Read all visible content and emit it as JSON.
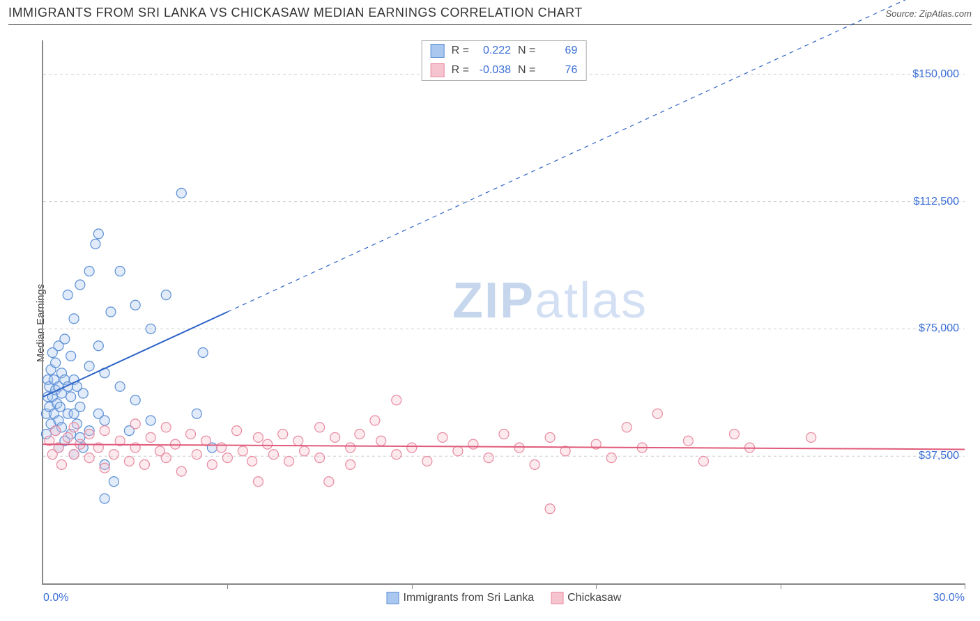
{
  "title": "IMMIGRANTS FROM SRI LANKA VS CHICKASAW MEDIAN EARNINGS CORRELATION CHART",
  "source_label": "Source: ",
  "source_name": "ZipAtlas.com",
  "ylabel": "Median Earnings",
  "watermark": {
    "part1": "ZIP",
    "part2": "atlas"
  },
  "chart": {
    "type": "scatter",
    "xlim": [
      0,
      30
    ],
    "ylim": [
      0,
      160000
    ],
    "x_unit": "%",
    "xticks_labels": {
      "left": "0.0%",
      "right": "30.0%"
    },
    "xtick_positions_pct": [
      0,
      20,
      40,
      60,
      80,
      100
    ],
    "yticks": [
      {
        "value": 37500,
        "label": "$37,500"
      },
      {
        "value": 75000,
        "label": "$75,000"
      },
      {
        "value": 112500,
        "label": "$112,500"
      },
      {
        "value": 150000,
        "label": "$150,000"
      }
    ],
    "grid_color": "#cccccc",
    "axis_color": "#888888",
    "background_color": "#ffffff",
    "marker_radius": 7,
    "marker_stroke_width": 1.2,
    "marker_fill_opacity": 0.35,
    "series": [
      {
        "id": "sri_lanka",
        "label": "Immigrants from Sri Lanka",
        "color_fill": "#a9c7ef",
        "color_stroke": "#5b8fd6",
        "stats": {
          "R": "0.222",
          "N": "69"
        },
        "trend": {
          "color": "#2d63c8",
          "width": 2,
          "solid_x_range": [
            0,
            6
          ],
          "y_at_solid": [
            55000,
            80000
          ],
          "dashed_to": [
            30,
            180000
          ]
        },
        "points": [
          [
            0.1,
            44000
          ],
          [
            0.1,
            50000
          ],
          [
            0.15,
            55000
          ],
          [
            0.15,
            60000
          ],
          [
            0.2,
            52000
          ],
          [
            0.2,
            58000
          ],
          [
            0.25,
            47000
          ],
          [
            0.25,
            63000
          ],
          [
            0.3,
            55000
          ],
          [
            0.3,
            68000
          ],
          [
            0.35,
            50000
          ],
          [
            0.35,
            60000
          ],
          [
            0.4,
            45000
          ],
          [
            0.4,
            57000
          ],
          [
            0.4,
            65000
          ],
          [
            0.45,
            53000
          ],
          [
            0.5,
            40000
          ],
          [
            0.5,
            48000
          ],
          [
            0.5,
            58000
          ],
          [
            0.5,
            70000
          ],
          [
            0.55,
            52000
          ],
          [
            0.6,
            46000
          ],
          [
            0.6,
            56000
          ],
          [
            0.6,
            62000
          ],
          [
            0.7,
            42000
          ],
          [
            0.7,
            60000
          ],
          [
            0.7,
            72000
          ],
          [
            0.8,
            50000
          ],
          [
            0.8,
            58000
          ],
          [
            0.8,
            85000
          ],
          [
            0.9,
            44000
          ],
          [
            0.9,
            55000
          ],
          [
            0.9,
            67000
          ],
          [
            1.0,
            38000
          ],
          [
            1.0,
            50000
          ],
          [
            1.0,
            60000
          ],
          [
            1.0,
            78000
          ],
          [
            1.1,
            47000
          ],
          [
            1.1,
            58000
          ],
          [
            1.2,
            43000
          ],
          [
            1.2,
            52000
          ],
          [
            1.2,
            88000
          ],
          [
            1.3,
            40000
          ],
          [
            1.3,
            56000
          ],
          [
            1.5,
            45000
          ],
          [
            1.5,
            64000
          ],
          [
            1.5,
            92000
          ],
          [
            1.7,
            100000
          ],
          [
            1.8,
            50000
          ],
          [
            1.8,
            70000
          ],
          [
            1.8,
            103000
          ],
          [
            2.0,
            35000
          ],
          [
            2.0,
            48000
          ],
          [
            2.0,
            62000
          ],
          [
            2.2,
            80000
          ],
          [
            2.3,
            30000
          ],
          [
            2.5,
            58000
          ],
          [
            2.5,
            92000
          ],
          [
            2.8,
            45000
          ],
          [
            3.0,
            54000
          ],
          [
            3.0,
            82000
          ],
          [
            3.5,
            48000
          ],
          [
            3.5,
            75000
          ],
          [
            4.0,
            85000
          ],
          [
            4.5,
            115000
          ],
          [
            5.0,
            50000
          ],
          [
            5.2,
            68000
          ],
          [
            5.5,
            40000
          ],
          [
            2.0,
            25000
          ]
        ]
      },
      {
        "id": "chickasaw",
        "label": "Chickasaw",
        "color_fill": "#f6c4ce",
        "color_stroke": "#e88aa0",
        "stats": {
          "R": "-0.038",
          "N": "76"
        },
        "trend": {
          "color": "#e05a7a",
          "width": 2,
          "solid_x_range": [
            0,
            30
          ],
          "y_at_solid": [
            41000,
            39500
          ],
          "dashed_to": null
        },
        "points": [
          [
            0.2,
            42000
          ],
          [
            0.3,
            38000
          ],
          [
            0.4,
            45000
          ],
          [
            0.5,
            40000
          ],
          [
            0.6,
            35000
          ],
          [
            0.8,
            43000
          ],
          [
            1.0,
            38000
          ],
          [
            1.0,
            46000
          ],
          [
            1.2,
            41000
          ],
          [
            1.5,
            37000
          ],
          [
            1.5,
            44000
          ],
          [
            1.8,
            40000
          ],
          [
            2.0,
            34000
          ],
          [
            2.0,
            45000
          ],
          [
            2.3,
            38000
          ],
          [
            2.5,
            42000
          ],
          [
            2.8,
            36000
          ],
          [
            3.0,
            40000
          ],
          [
            3.0,
            47000
          ],
          [
            3.3,
            35000
          ],
          [
            3.5,
            43000
          ],
          [
            3.8,
            39000
          ],
          [
            4.0,
            37000
          ],
          [
            4.0,
            46000
          ],
          [
            4.3,
            41000
          ],
          [
            4.5,
            33000
          ],
          [
            4.8,
            44000
          ],
          [
            5.0,
            38000
          ],
          [
            5.3,
            42000
          ],
          [
            5.5,
            35000
          ],
          [
            5.8,
            40000
          ],
          [
            6.0,
            37000
          ],
          [
            6.3,
            45000
          ],
          [
            6.5,
            39000
          ],
          [
            6.8,
            36000
          ],
          [
            7.0,
            43000
          ],
          [
            7.0,
            30000
          ],
          [
            7.3,
            41000
          ],
          [
            7.5,
            38000
          ],
          [
            7.8,
            44000
          ],
          [
            8.0,
            36000
          ],
          [
            8.3,
            42000
          ],
          [
            8.5,
            39000
          ],
          [
            9.0,
            37000
          ],
          [
            9.0,
            46000
          ],
          [
            9.3,
            30000
          ],
          [
            9.5,
            43000
          ],
          [
            10.0,
            40000
          ],
          [
            10.0,
            35000
          ],
          [
            10.3,
            44000
          ],
          [
            10.8,
            48000
          ],
          [
            11.0,
            42000
          ],
          [
            11.5,
            38000
          ],
          [
            11.5,
            54000
          ],
          [
            12.0,
            40000
          ],
          [
            12.5,
            36000
          ],
          [
            13.0,
            43000
          ],
          [
            13.5,
            39000
          ],
          [
            14.0,
            41000
          ],
          [
            14.5,
            37000
          ],
          [
            15.0,
            44000
          ],
          [
            15.5,
            40000
          ],
          [
            16.0,
            35000
          ],
          [
            16.5,
            43000
          ],
          [
            16.5,
            22000
          ],
          [
            17.0,
            39000
          ],
          [
            18.0,
            41000
          ],
          [
            18.5,
            37000
          ],
          [
            19.0,
            46000
          ],
          [
            19.5,
            40000
          ],
          [
            20.0,
            50000
          ],
          [
            21.0,
            42000
          ],
          [
            21.5,
            36000
          ],
          [
            22.5,
            44000
          ],
          [
            23.0,
            40000
          ],
          [
            25.0,
            43000
          ]
        ]
      }
    ],
    "stats_box": {
      "r_label": "R =",
      "n_label": "N ="
    },
    "legend_bottom": true
  }
}
